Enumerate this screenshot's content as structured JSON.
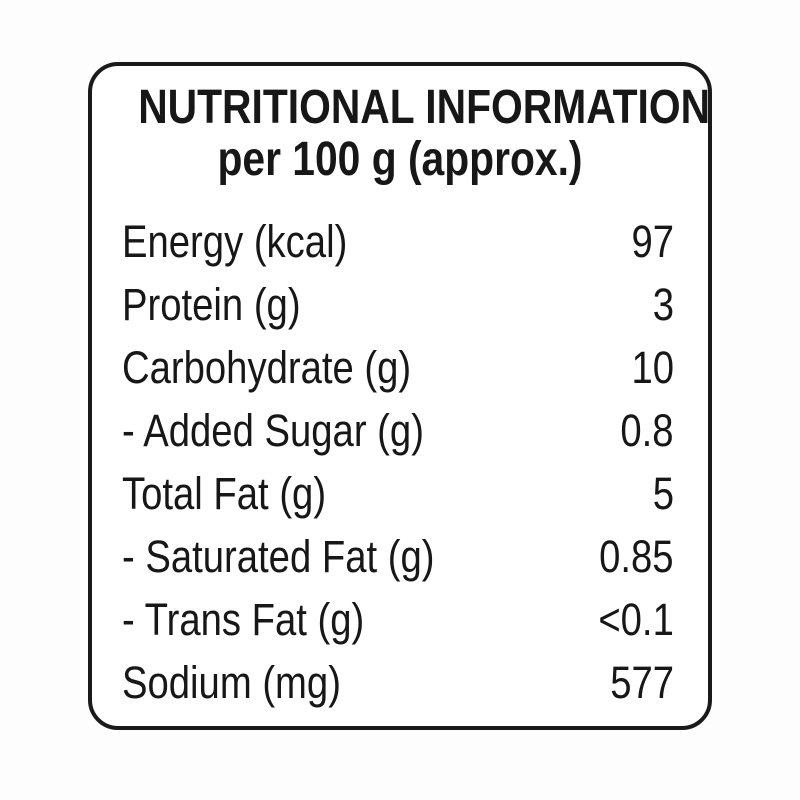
{
  "label": {
    "title_line1": "NUTRITIONAL INFORMATION",
    "title_line2": "per 100 g (approx.)",
    "rows": [
      {
        "name": "Energy (kcal)",
        "value": "97"
      },
      {
        "name": "Protein (g)",
        "value": "3"
      },
      {
        "name": "Carbohydrate (g)",
        "value": "10"
      },
      {
        "name": "- Added Sugar (g)",
        "value": "0.8"
      },
      {
        "name": "Total Fat (g)",
        "value": "5"
      },
      {
        "name": "- Saturated Fat (g)",
        "value": "0.85"
      },
      {
        "name": "- Trans Fat (g)",
        "value": "<0.1"
      },
      {
        "name": "Sodium (mg)",
        "value": "577"
      }
    ],
    "colors": {
      "text": "#171717",
      "border": "#1a1a1a",
      "card_background": "#ffffff",
      "page_background": "#fdfdfd"
    }
  }
}
